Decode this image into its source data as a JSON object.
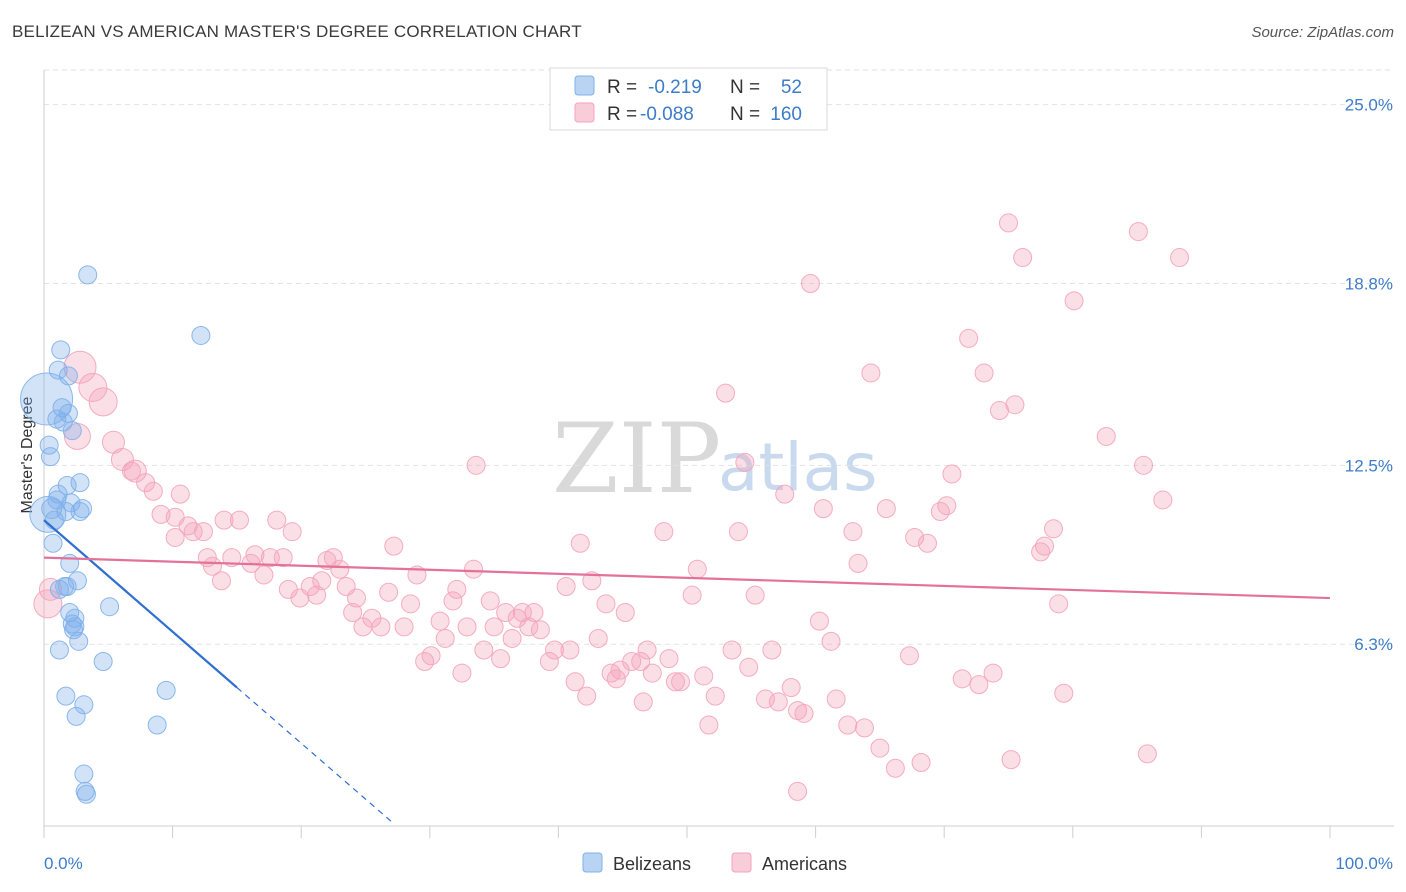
{
  "header": {
    "title": "BELIZEAN VS AMERICAN MASTER'S DEGREE CORRELATION CHART",
    "source": "Source: ZipAtlas.com"
  },
  "watermark": {
    "zip": "ZIP",
    "atlas": "atlas"
  },
  "legend": {
    "rows": [
      {
        "r_label": "R =",
        "r_value": "-0.219",
        "n_label": "N =",
        "n_value": "52",
        "color": "#7fb0ea"
      },
      {
        "r_label": "R =",
        "r_value": "-0.088",
        "n_label": "N =",
        "n_value": "160",
        "color": "#f4a3bb"
      }
    ]
  },
  "bottom_legend": [
    {
      "label": "Belizeans",
      "color": "#7fb0ea"
    },
    {
      "label": "Americans",
      "color": "#f4a3bb"
    }
  ],
  "chart_data": {
    "type": "scatter",
    "title": "BELIZEAN VS AMERICAN MASTER'S DEGREE CORRELATION CHART",
    "ylabel": "Master's Degree",
    "xlabel": "",
    "xlim": [
      0,
      100
    ],
    "ylim": [
      0,
      26.2
    ],
    "x_tick_labels": [
      "0.0%",
      "100.0%"
    ],
    "y_ticks": [
      6.3,
      12.5,
      18.8,
      25.0
    ],
    "y_tick_labels": [
      "6.3%",
      "12.5%",
      "18.8%",
      "25.0%"
    ],
    "grid": true,
    "legend_position": "top-center",
    "series": [
      {
        "name": "Belizeans",
        "color": "#7fb0ea",
        "line_color": "#2f6fd0",
        "trend": {
          "x0": 0,
          "y0": 10.6,
          "x1": 15,
          "y1": 4.8,
          "dash_to_x": 27
        },
        "points": [
          [
            0.2,
            14.8,
            26
          ],
          [
            0.3,
            10.8,
            18
          ],
          [
            0.4,
            13.2,
            9
          ],
          [
            0.5,
            12.8,
            9
          ],
          [
            0.6,
            11.0,
            10
          ],
          [
            0.7,
            9.8,
            9
          ],
          [
            0.8,
            10.6,
            9
          ],
          [
            1.0,
            11.3,
            9
          ],
          [
            1.0,
            14.1,
            9
          ],
          [
            1.1,
            15.8,
            9
          ],
          [
            1.1,
            11.5,
            9
          ],
          [
            1.2,
            8.2,
            9
          ],
          [
            1.2,
            6.1,
            9
          ],
          [
            1.3,
            16.5,
            9
          ],
          [
            1.4,
            14.5,
            9
          ],
          [
            1.5,
            14.0,
            9
          ],
          [
            1.6,
            8.3,
            9
          ],
          [
            1.7,
            10.9,
            9
          ],
          [
            1.7,
            4.5,
            9
          ],
          [
            1.8,
            8.3,
            9
          ],
          [
            1.8,
            11.8,
            9
          ],
          [
            1.9,
            15.6,
            9
          ],
          [
            1.9,
            14.3,
            9
          ],
          [
            2.0,
            9.1,
            9
          ],
          [
            2.0,
            7.4,
            9
          ],
          [
            2.1,
            11.2,
            9
          ],
          [
            2.2,
            13.7,
            9
          ],
          [
            2.2,
            7.0,
            9
          ],
          [
            2.3,
            6.8,
            9
          ],
          [
            2.4,
            6.9,
            9
          ],
          [
            2.4,
            7.2,
            9
          ],
          [
            2.5,
            3.8,
            9
          ],
          [
            2.6,
            8.5,
            9
          ],
          [
            2.7,
            6.4,
            9
          ],
          [
            2.8,
            10.9,
            9
          ],
          [
            2.8,
            11.9,
            9
          ],
          [
            3.0,
            11.0,
            9
          ],
          [
            3.1,
            4.2,
            9
          ],
          [
            3.1,
            1.8,
            9
          ],
          [
            3.2,
            1.2,
            9
          ],
          [
            3.3,
            1.1,
            9
          ],
          [
            3.4,
            19.1,
            9
          ],
          [
            4.6,
            5.7,
            9
          ],
          [
            5.1,
            7.6,
            9
          ],
          [
            8.8,
            3.5,
            9
          ],
          [
            9.5,
            4.7,
            9
          ],
          [
            12.2,
            17.0,
            9
          ]
        ]
      },
      {
        "name": "Americans",
        "color": "#f4a3bb",
        "line_color": "#e4719a",
        "trend": {
          "x0": 0,
          "y0": 9.3,
          "x1": 100,
          "y1": 7.9
        },
        "points": [
          [
            0.3,
            7.7,
            14
          ],
          [
            0.5,
            8.2,
            11
          ],
          [
            2.6,
            13.5,
            13
          ],
          [
            2.8,
            15.9,
            16
          ],
          [
            3.8,
            15.2,
            14
          ],
          [
            4.6,
            14.7,
            14
          ],
          [
            5.4,
            13.3,
            11
          ],
          [
            6.1,
            12.7,
            11
          ],
          [
            6.8,
            12.3,
            9
          ],
          [
            7.1,
            12.3,
            11
          ],
          [
            7.9,
            11.9,
            9
          ],
          [
            8.5,
            11.6,
            9
          ],
          [
            9.1,
            10.8,
            9
          ],
          [
            10.2,
            10.7,
            9
          ],
          [
            10.2,
            10.0,
            9
          ],
          [
            10.6,
            11.5,
            9
          ],
          [
            11.2,
            10.4,
            9
          ],
          [
            11.6,
            10.2,
            9
          ],
          [
            12.4,
            10.2,
            9
          ],
          [
            12.7,
            9.3,
            9
          ],
          [
            13.1,
            9.0,
            9
          ],
          [
            13.8,
            8.5,
            9
          ],
          [
            14.0,
            10.6,
            9
          ],
          [
            14.6,
            9.3,
            9
          ],
          [
            15.2,
            10.6,
            9
          ],
          [
            16.1,
            9.1,
            9
          ],
          [
            16.4,
            9.4,
            9
          ],
          [
            17.1,
            8.7,
            9
          ],
          [
            17.6,
            9.3,
            9
          ],
          [
            18.1,
            10.6,
            9
          ],
          [
            18.6,
            9.3,
            9
          ],
          [
            19.0,
            8.2,
            9
          ],
          [
            19.3,
            10.2,
            9
          ],
          [
            19.9,
            7.9,
            9
          ],
          [
            20.7,
            8.3,
            9
          ],
          [
            21.2,
            8.0,
            9
          ],
          [
            21.6,
            8.5,
            9
          ],
          [
            22.0,
            9.2,
            9
          ],
          [
            22.5,
            9.3,
            9
          ],
          [
            23.0,
            8.9,
            9
          ],
          [
            23.5,
            8.3,
            9
          ],
          [
            24.0,
            7.4,
            9
          ],
          [
            24.3,
            7.9,
            9
          ],
          [
            24.8,
            6.9,
            9
          ],
          [
            25.5,
            7.2,
            9
          ],
          [
            26.2,
            6.9,
            9
          ],
          [
            26.8,
            8.1,
            9
          ],
          [
            27.2,
            9.7,
            9
          ],
          [
            28.0,
            6.9,
            9
          ],
          [
            28.5,
            7.7,
            9
          ],
          [
            29.0,
            8.7,
            9
          ],
          [
            29.6,
            5.7,
            9
          ],
          [
            30.1,
            5.9,
            9
          ],
          [
            30.8,
            7.1,
            9
          ],
          [
            31.2,
            6.5,
            9
          ],
          [
            31.8,
            7.8,
            9
          ],
          [
            32.1,
            8.2,
            9
          ],
          [
            32.5,
            5.3,
            9
          ],
          [
            32.9,
            6.9,
            9
          ],
          [
            33.4,
            8.9,
            9
          ],
          [
            33.6,
            12.5,
            9
          ],
          [
            34.2,
            6.1,
            9
          ],
          [
            34.7,
            7.8,
            9
          ],
          [
            35.0,
            6.9,
            9
          ],
          [
            35.5,
            5.8,
            9
          ],
          [
            35.9,
            7.4,
            9
          ],
          [
            36.4,
            6.5,
            9
          ],
          [
            36.8,
            7.2,
            9
          ],
          [
            37.2,
            7.4,
            9
          ],
          [
            37.7,
            6.9,
            9
          ],
          [
            38.1,
            7.4,
            9
          ],
          [
            38.6,
            6.8,
            9
          ],
          [
            39.3,
            5.7,
            9
          ],
          [
            39.7,
            6.1,
            9
          ],
          [
            40.6,
            8.3,
            9
          ],
          [
            40.9,
            6.1,
            9
          ],
          [
            41.3,
            5.0,
            9
          ],
          [
            41.7,
            9.8,
            9
          ],
          [
            42.2,
            4.5,
            9
          ],
          [
            42.6,
            8.5,
            9
          ],
          [
            43.1,
            6.5,
            9
          ],
          [
            43.7,
            7.7,
            9
          ],
          [
            44.1,
            5.3,
            9
          ],
          [
            44.5,
            5.1,
            9
          ],
          [
            44.8,
            5.4,
            9
          ],
          [
            45.2,
            7.4,
            9
          ],
          [
            45.7,
            5.7,
            9
          ],
          [
            46.4,
            5.7,
            9
          ],
          [
            46.6,
            4.3,
            9
          ],
          [
            46.9,
            6.1,
            9
          ],
          [
            47.3,
            5.3,
            9
          ],
          [
            48.2,
            10.2,
            9
          ],
          [
            48.6,
            5.8,
            9
          ],
          [
            49.1,
            5.0,
            9
          ],
          [
            49.5,
            5.0,
            9
          ],
          [
            50.4,
            8.0,
            9
          ],
          [
            50.8,
            8.9,
            9
          ],
          [
            51.3,
            5.2,
            9
          ],
          [
            51.7,
            3.5,
            9
          ],
          [
            52.2,
            4.5,
            9
          ],
          [
            53.0,
            15.0,
            9
          ],
          [
            53.5,
            6.1,
            9
          ],
          [
            54.0,
            10.2,
            9
          ],
          [
            54.5,
            12.6,
            9
          ],
          [
            54.8,
            5.5,
            9
          ],
          [
            55.3,
            8.0,
            9
          ],
          [
            56.1,
            4.4,
            9
          ],
          [
            56.6,
            6.1,
            9
          ],
          [
            57.1,
            4.3,
            9
          ],
          [
            57.6,
            11.5,
            9
          ],
          [
            58.1,
            4.8,
            9
          ],
          [
            58.6,
            4.0,
            9
          ],
          [
            59.1,
            3.9,
            9
          ],
          [
            59.6,
            18.8,
            9
          ],
          [
            60.3,
            7.1,
            9
          ],
          [
            60.6,
            11.0,
            9
          ],
          [
            61.2,
            6.4,
            9
          ],
          [
            61.6,
            4.4,
            9
          ],
          [
            62.5,
            3.5,
            9
          ],
          [
            62.9,
            10.2,
            9
          ],
          [
            63.3,
            9.1,
            9
          ],
          [
            63.8,
            3.4,
            9
          ],
          [
            64.3,
            15.7,
            9
          ],
          [
            65.0,
            2.7,
            9
          ],
          [
            65.5,
            11.0,
            9
          ],
          [
            66.2,
            2.0,
            9
          ],
          [
            67.3,
            5.9,
            9
          ],
          [
            67.7,
            10.0,
            9
          ],
          [
            68.2,
            2.2,
            9
          ],
          [
            68.7,
            9.8,
            9
          ],
          [
            69.7,
            10.9,
            9
          ],
          [
            70.2,
            11.1,
            9
          ],
          [
            70.6,
            12.2,
            9
          ],
          [
            71.4,
            5.1,
            9
          ],
          [
            71.9,
            16.9,
            9
          ],
          [
            72.7,
            4.9,
            9
          ],
          [
            73.1,
            15.7,
            9
          ],
          [
            73.8,
            5.3,
            9
          ],
          [
            74.3,
            14.4,
            9
          ],
          [
            75.0,
            20.9,
            9
          ],
          [
            75.5,
            14.6,
            9
          ],
          [
            75.2,
            2.3,
            9
          ],
          [
            76.1,
            19.7,
            9
          ],
          [
            77.5,
            9.5,
            9
          ],
          [
            77.8,
            9.7,
            9
          ],
          [
            78.5,
            10.3,
            9
          ],
          [
            78.9,
            7.7,
            9
          ],
          [
            79.3,
            4.6,
            9
          ],
          [
            80.1,
            18.2,
            9
          ],
          [
            82.6,
            13.5,
            9
          ],
          [
            85.1,
            20.6,
            9
          ],
          [
            85.5,
            12.5,
            9
          ],
          [
            85.8,
            2.5,
            9
          ],
          [
            87.0,
            11.3,
            9
          ],
          [
            88.3,
            19.7,
            9
          ],
          [
            58.6,
            1.2,
            9
          ]
        ]
      }
    ]
  }
}
